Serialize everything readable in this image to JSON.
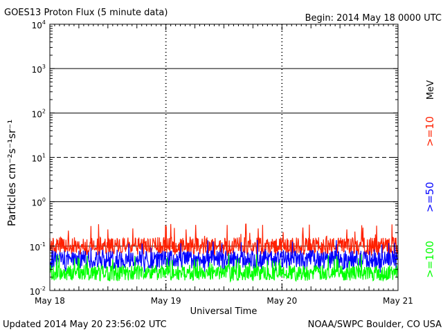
{
  "header": {
    "title": "GOES13 Proton Flux (5 minute data)",
    "begin": "Begin: 2014 May 18 0000 UTC"
  },
  "footer": {
    "updated": "Updated 2014 May 20 23:56:02 UTC",
    "credit": "NOAA/SWPC Boulder, CO USA"
  },
  "chart_data": {
    "type": "line",
    "title": "GOES13 Proton Flux (5 minute data)",
    "xlabel": "Universal Time",
    "ylabel": "Particles cm⁻²s⁻¹sr⁻¹",
    "yscale": "log",
    "ylim": [
      0.01,
      10000
    ],
    "x_ticks": [
      "May 18",
      "May 19",
      "May 20",
      "May 21"
    ],
    "y_ticks": [
      {
        "base": "10",
        "exp": "-2"
      },
      {
        "base": "10",
        "exp": "-1"
      },
      {
        "base": "10",
        "exp": "0"
      },
      {
        "base": "10",
        "exp": "1"
      },
      {
        "base": "10",
        "exp": "2"
      },
      {
        "base": "10",
        "exp": "3"
      },
      {
        "base": "10",
        "exp": "4"
      }
    ],
    "threshold_line": 10,
    "legend_unit": "MeV",
    "series": [
      {
        "name": ">=10",
        "color": "#ff2000",
        "typical": 0.1,
        "min": 0.06,
        "max": 0.32
      },
      {
        "name": ">=50",
        "color": "#0000ff",
        "typical": 0.05,
        "min": 0.025,
        "max": 0.14
      },
      {
        "name": ">=100",
        "color": "#00ff00",
        "typical": 0.025,
        "min": 0.016,
        "max": 0.07
      }
    ]
  }
}
